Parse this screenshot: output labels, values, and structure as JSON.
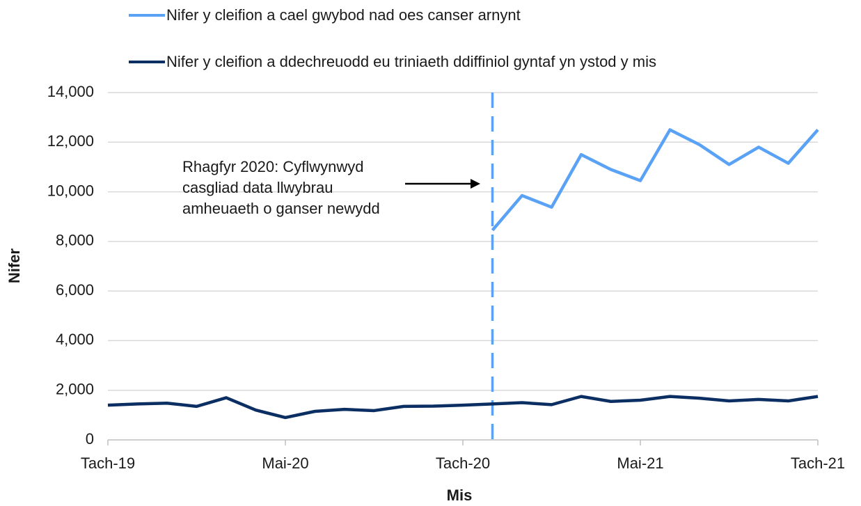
{
  "chart_data": {
    "type": "line",
    "categories": [
      "Tach-19",
      null,
      null,
      null,
      null,
      null,
      "Mai-20",
      null,
      null,
      null,
      null,
      null,
      "Tach-20",
      null,
      null,
      null,
      null,
      null,
      "Mai-21",
      null,
      null,
      null,
      null,
      null,
      "Tach-21"
    ],
    "series": [
      {
        "name": "Nifer y cleifion a cael gwybod nad oes canser arnynt",
        "color": "#5aa2f5",
        "values": [
          null,
          null,
          null,
          null,
          null,
          null,
          null,
          null,
          null,
          null,
          null,
          null,
          null,
          8450,
          9850,
          9380,
          11500,
          10900,
          10450,
          12500,
          11900,
          11100,
          11800,
          11150,
          12500
        ]
      },
      {
        "name": "Nifer y cleifion a ddechreuodd eu triniaeth ddiffiniol gyntaf yn ystod y mis",
        "color": "#0b2e63",
        "values": [
          1400,
          1450,
          1480,
          1350,
          1700,
          1200,
          900,
          1150,
          1230,
          1180,
          1350,
          1360,
          1400,
          1450,
          1500,
          1420,
          1750,
          1550,
          1600,
          1750,
          1680,
          1570,
          1630,
          1570,
          1750
        ]
      }
    ],
    "annotation": [
      "Rhagfyr 2020: Cyflwynwyd",
      "casgliad data llwybrau",
      "amheuaeth o ganser newydd"
    ],
    "xlabel": "Mis",
    "ylabel": "Nifer",
    "ylim": [
      0,
      14000
    ],
    "yticks": [
      0,
      {
        "value": 2000,
        "label": "2,000"
      },
      {
        "value": 4000,
        "label": "4,000"
      },
      {
        "value": 6000,
        "label": "6,000"
      },
      {
        "value": 8000,
        "label": "8,000"
      },
      {
        "value": 10000,
        "label": "10,000"
      },
      {
        "value": 12000,
        "label": "12,000"
      },
      {
        "value": 14000,
        "label": "14,000"
      }
    ],
    "grid": true
  }
}
